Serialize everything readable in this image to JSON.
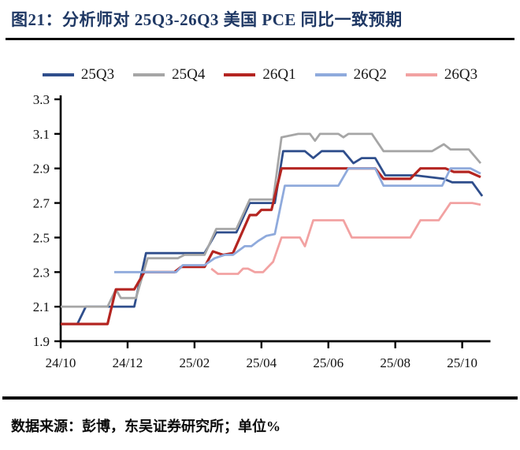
{
  "header": {
    "title": "图21：分析师对 25Q3-26Q3 美国 PCE 同比一致预期"
  },
  "footer": {
    "source": "数据来源：彭博，东吴证券研究所；单位%"
  },
  "colors": {
    "title_navy": "#1F3864",
    "divider_black": "#0a0a0a",
    "axis_black": "#000000"
  },
  "chart_data": {
    "type": "line",
    "title": "分析师对 25Q3-26Q3 美国 PCE 同比一致预期",
    "unit": "%",
    "xlabel": "",
    "ylabel": "",
    "grid": false,
    "legend_position": "top",
    "ylim": [
      1.9,
      3.3
    ],
    "yticks": [
      3.3,
      3.1,
      2.9,
      2.7,
      2.5,
      2.3,
      2.1,
      1.9
    ],
    "x_axis_note": "months, 0 = 2024-10, 1 unit = 1 month",
    "x_range": [
      0,
      12.75
    ],
    "xticks": [
      {
        "label": "24/10",
        "m": 0
      },
      {
        "label": "24/12",
        "m": 2
      },
      {
        "label": "25/02",
        "m": 4
      },
      {
        "label": "25/04",
        "m": 6
      },
      {
        "label": "25/06",
        "m": 8
      },
      {
        "label": "25/08",
        "m": 10
      },
      {
        "label": "25/10",
        "m": 12
      }
    ],
    "series": [
      {
        "name": "25Q3",
        "color": "#2F4E8C",
        "points": [
          [
            0,
            2.0
          ],
          [
            0.5,
            2.0
          ],
          [
            0.75,
            2.1
          ],
          [
            2.2,
            2.1
          ],
          [
            2.55,
            2.41
          ],
          [
            4.3,
            2.41
          ],
          [
            4.65,
            2.53
          ],
          [
            5.25,
            2.53
          ],
          [
            5.65,
            2.7
          ],
          [
            6.4,
            2.7
          ],
          [
            6.65,
            3.0
          ],
          [
            7.3,
            3.0
          ],
          [
            7.55,
            2.96
          ],
          [
            7.8,
            3.0
          ],
          [
            8.45,
            3.0
          ],
          [
            8.75,
            2.93
          ],
          [
            9.0,
            2.96
          ],
          [
            9.4,
            2.96
          ],
          [
            9.7,
            2.86
          ],
          [
            10.6,
            2.86
          ],
          [
            11.45,
            2.84
          ],
          [
            11.7,
            2.82
          ],
          [
            12.3,
            2.82
          ],
          [
            12.6,
            2.74
          ]
        ]
      },
      {
        "name": "25Q4",
        "color": "#A6A6A6",
        "points": [
          [
            0,
            2.1
          ],
          [
            1.4,
            2.1
          ],
          [
            1.65,
            2.2
          ],
          [
            1.8,
            2.15
          ],
          [
            2.25,
            2.15
          ],
          [
            2.6,
            2.38
          ],
          [
            3.5,
            2.38
          ],
          [
            3.7,
            2.4
          ],
          [
            4.3,
            2.4
          ],
          [
            4.65,
            2.55
          ],
          [
            5.25,
            2.55
          ],
          [
            5.65,
            2.72
          ],
          [
            6.35,
            2.72
          ],
          [
            6.6,
            3.08
          ],
          [
            7.1,
            3.1
          ],
          [
            7.45,
            3.1
          ],
          [
            7.6,
            3.06
          ],
          [
            7.75,
            3.1
          ],
          [
            8.3,
            3.1
          ],
          [
            8.45,
            3.08
          ],
          [
            8.6,
            3.1
          ],
          [
            9.3,
            3.1
          ],
          [
            9.65,
            3.0
          ],
          [
            11.1,
            3.0
          ],
          [
            11.45,
            3.04
          ],
          [
            11.65,
            3.01
          ],
          [
            12.2,
            3.01
          ],
          [
            12.55,
            2.93
          ]
        ]
      },
      {
        "name": "26Q1",
        "color": "#B42521",
        "points": [
          [
            0,
            2.0
          ],
          [
            1.4,
            2.0
          ],
          [
            1.65,
            2.2
          ],
          [
            2.2,
            2.2
          ],
          [
            2.5,
            2.3
          ],
          [
            3.4,
            2.3
          ],
          [
            3.6,
            2.33
          ],
          [
            4.3,
            2.33
          ],
          [
            4.55,
            2.42
          ],
          [
            4.85,
            2.4
          ],
          [
            5.15,
            2.41
          ],
          [
            5.65,
            2.63
          ],
          [
            5.85,
            2.63
          ],
          [
            6.0,
            2.66
          ],
          [
            6.3,
            2.66
          ],
          [
            6.6,
            2.9
          ],
          [
            9.4,
            2.9
          ],
          [
            9.65,
            2.84
          ],
          [
            10.45,
            2.84
          ],
          [
            10.75,
            2.9
          ],
          [
            11.5,
            2.9
          ],
          [
            11.75,
            2.88
          ],
          [
            12.2,
            2.88
          ],
          [
            12.55,
            2.85
          ]
        ]
      },
      {
        "name": "26Q2",
        "color": "#8FAADC",
        "points": [
          [
            1.6,
            2.3
          ],
          [
            3.45,
            2.3
          ],
          [
            3.65,
            2.34
          ],
          [
            4.3,
            2.34
          ],
          [
            4.6,
            2.38
          ],
          [
            4.9,
            2.4
          ],
          [
            5.15,
            2.4
          ],
          [
            5.5,
            2.45
          ],
          [
            5.7,
            2.45
          ],
          [
            5.9,
            2.48
          ],
          [
            6.15,
            2.51
          ],
          [
            6.4,
            2.52
          ],
          [
            6.7,
            2.8
          ],
          [
            8.3,
            2.8
          ],
          [
            8.6,
            2.9
          ],
          [
            9.4,
            2.9
          ],
          [
            9.65,
            2.8
          ],
          [
            11.4,
            2.8
          ],
          [
            11.65,
            2.9
          ],
          [
            12.25,
            2.9
          ],
          [
            12.55,
            2.87
          ]
        ]
      },
      {
        "name": "26Q3",
        "color": "#F2A2A2",
        "points": [
          [
            4.5,
            2.32
          ],
          [
            4.7,
            2.29
          ],
          [
            5.3,
            2.29
          ],
          [
            5.45,
            2.32
          ],
          [
            5.6,
            2.32
          ],
          [
            5.8,
            2.3
          ],
          [
            6.05,
            2.3
          ],
          [
            6.2,
            2.33
          ],
          [
            6.35,
            2.36
          ],
          [
            6.6,
            2.5
          ],
          [
            7.15,
            2.5
          ],
          [
            7.3,
            2.45
          ],
          [
            7.55,
            2.6
          ],
          [
            8.45,
            2.6
          ],
          [
            8.7,
            2.5
          ],
          [
            10.45,
            2.5
          ],
          [
            10.75,
            2.6
          ],
          [
            11.3,
            2.6
          ],
          [
            11.65,
            2.7
          ],
          [
            12.3,
            2.7
          ],
          [
            12.55,
            2.69
          ]
        ]
      }
    ]
  }
}
